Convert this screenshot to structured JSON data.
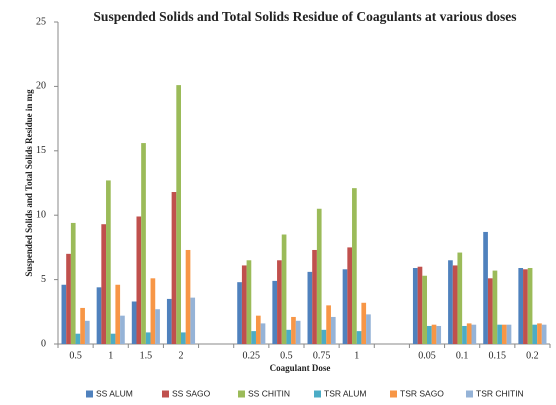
{
  "chart_data": {
    "type": "bar",
    "title": "Suspended Solids and Total Solids Residue of Coagulants at various doses",
    "x_label": "Coagulant Dose",
    "y_label": "Suspended Solids and Total Solids Residue in mg",
    "categories": [
      "0.5",
      "1",
      "1.5",
      "2",
      null,
      "0.25",
      "0.5",
      "0.75",
      "1",
      null,
      "0.05",
      "0.1",
      "0.15",
      "0.2"
    ],
    "series": [
      {
        "name": "SS ALUM",
        "color": "#4f81bd",
        "values": [
          4.6,
          4.4,
          3.3,
          3.5,
          null,
          4.8,
          4.9,
          5.6,
          5.8,
          null,
          5.9,
          6.5,
          8.7,
          5.9
        ]
      },
      {
        "name": "SS SAGO",
        "color": "#c0504d",
        "values": [
          7.0,
          9.3,
          9.9,
          11.8,
          null,
          6.1,
          6.5,
          7.3,
          7.5,
          null,
          6.0,
          6.1,
          5.1,
          5.8
        ]
      },
      {
        "name": "SS CHITIN",
        "color": "#9bbb59",
        "values": [
          9.4,
          12.7,
          15.6,
          20.1,
          null,
          6.5,
          8.5,
          10.5,
          12.1,
          null,
          5.3,
          7.1,
          5.7,
          5.9
        ]
      },
      {
        "name": "TSR ALUM",
        "color": "#4bacc6",
        "values": [
          0.8,
          0.8,
          0.9,
          0.9,
          null,
          1.0,
          1.1,
          1.1,
          1.0,
          null,
          1.4,
          1.4,
          1.5,
          1.5
        ]
      },
      {
        "name": "TSR SAGO",
        "color": "#f79646",
        "values": [
          2.8,
          4.6,
          5.1,
          7.3,
          null,
          2.2,
          2.1,
          3.0,
          3.2,
          null,
          1.5,
          1.6,
          1.5,
          1.6
        ]
      },
      {
        "name": "TSR CHITIN",
        "color": "#95b3d7",
        "values": [
          1.8,
          2.2,
          2.7,
          3.6,
          null,
          1.6,
          1.8,
          2.1,
          2.3,
          null,
          1.4,
          1.5,
          1.5,
          1.5
        ]
      }
    ],
    "ylim": [
      0,
      25
    ],
    "yticks": [
      0,
      5,
      10,
      15,
      20,
      25
    ],
    "grid": false,
    "legend": "bottom"
  }
}
